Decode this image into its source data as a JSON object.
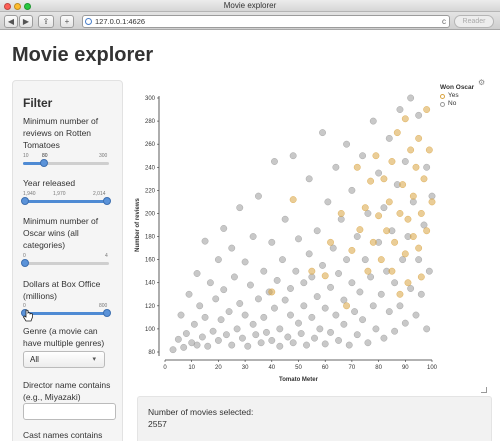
{
  "window": {
    "title": "Movie explorer",
    "url": "127.0.0.1:4626",
    "reader_label": "Reader"
  },
  "app": {
    "title": "Movie explorer"
  },
  "sidebar": {
    "heading": "Filter",
    "reviews": {
      "label": "Minimum number of reviews on Rotten Tomatoes",
      "min_tick": "10",
      "value_tick": "80",
      "max_tick": "300",
      "value": 80,
      "min": 10,
      "max": 300
    },
    "year": {
      "label": "Year released",
      "lo_tick": "1,940",
      "mid_tick": "1,970",
      "hi_tick": "2,014",
      "lo": 1940,
      "hi": 2014,
      "min": 1940,
      "max": 2014
    },
    "oscar": {
      "label": "Minimum number of Oscar wins (all categories)",
      "min_tick": "0",
      "max_tick": "4",
      "value": 0
    },
    "boxoffice": {
      "label": "Dollars at Box Office (millions)",
      "min_tick": "0",
      "max_tick": "800",
      "lo": 0,
      "hi": 800
    },
    "genre": {
      "label": "Genre (a movie can have multiple genres)",
      "selected": "All"
    },
    "director": {
      "label": "Director name contains (e.g., Miyazaki)",
      "value": ""
    },
    "cast": {
      "label": "Cast names contains"
    }
  },
  "selection": {
    "label": "Number of movies selected:",
    "count": "2557"
  },
  "chart_data": {
    "type": "scatter",
    "xlabel": "Tomato Meter",
    "ylabel": "Number of reviews",
    "xlim": [
      0,
      100
    ],
    "ylim": [
      80,
      300
    ],
    "x_ticks": [
      "0",
      "10",
      "20",
      "30",
      "40",
      "50",
      "60",
      "70",
      "80",
      "90",
      "100"
    ],
    "y_ticks": [
      "80",
      "100",
      "120",
      "140",
      "160",
      "180",
      "200",
      "220",
      "240",
      "260",
      "280",
      "300"
    ],
    "legend": {
      "title": "Won Oscar",
      "entries": [
        "Yes",
        "No"
      ],
      "placement": "top-right"
    },
    "colors": {
      "Yes": "#d9a441",
      "No": "#9a9a9a"
    },
    "series": [
      {
        "name": "No",
        "points": [
          [
            3,
            82
          ],
          [
            5,
            91
          ],
          [
            6,
            112
          ],
          [
            7,
            84
          ],
          [
            8,
            96
          ],
          [
            9,
            130
          ],
          [
            10,
            88
          ],
          [
            11,
            104
          ],
          [
            12,
            148
          ],
          [
            12,
            86
          ],
          [
            13,
            120
          ],
          [
            14,
            93
          ],
          [
            15,
            176
          ],
          [
            15,
            110
          ],
          [
            16,
            85
          ],
          [
            17,
            140
          ],
          [
            18,
            98
          ],
          [
            19,
            126
          ],
          [
            20,
            160
          ],
          [
            20,
            90
          ],
          [
            21,
            108
          ],
          [
            22,
            187
          ],
          [
            22,
            134
          ],
          [
            23,
            95
          ],
          [
            24,
            115
          ],
          [
            25,
            170
          ],
          [
            25,
            86
          ],
          [
            26,
            145
          ],
          [
            27,
            100
          ],
          [
            28,
            122
          ],
          [
            28,
            205
          ],
          [
            29,
            92
          ],
          [
            30,
            158
          ],
          [
            30,
            112
          ],
          [
            31,
            85
          ],
          [
            32,
            138
          ],
          [
            33,
            104
          ],
          [
            33,
            180
          ],
          [
            34,
            95
          ],
          [
            35,
            126
          ],
          [
            35,
            215
          ],
          [
            36,
            88
          ],
          [
            37,
            150
          ],
          [
            37,
            110
          ],
          [
            38,
            97
          ],
          [
            39,
            132
          ],
          [
            40,
            175
          ],
          [
            40,
            90
          ],
          [
            41,
            118
          ],
          [
            41,
            245
          ],
          [
            42,
            142
          ],
          [
            43,
            100
          ],
          [
            43,
            85
          ],
          [
            44,
            160
          ],
          [
            45,
            125
          ],
          [
            45,
            195
          ],
          [
            46,
            93
          ],
          [
            47,
            135
          ],
          [
            47,
            112
          ],
          [
            48,
            250
          ],
          [
            48,
            88
          ],
          [
            49,
            150
          ],
          [
            50,
            105
          ],
          [
            50,
            178
          ],
          [
            51,
            96
          ],
          [
            52,
            140
          ],
          [
            52,
            120
          ],
          [
            53,
            86
          ],
          [
            54,
            165
          ],
          [
            54,
            230
          ],
          [
            55,
            110
          ],
          [
            55,
            145
          ],
          [
            56,
            92
          ],
          [
            57,
            185
          ],
          [
            57,
            128
          ],
          [
            58,
            100
          ],
          [
            59,
            155
          ],
          [
            59,
            270
          ],
          [
            60,
            118
          ],
          [
            60,
            87
          ],
          [
            61,
            210
          ],
          [
            62,
            136
          ],
          [
            62,
            97
          ],
          [
            63,
            170
          ],
          [
            64,
            112
          ],
          [
            64,
            240
          ],
          [
            65,
            148
          ],
          [
            65,
            90
          ],
          [
            66,
            195
          ],
          [
            67,
            125
          ],
          [
            67,
            104
          ],
          [
            68,
            160
          ],
          [
            68,
            260
          ],
          [
            69,
            86
          ],
          [
            70,
            140
          ],
          [
            70,
            220
          ],
          [
            71,
            115
          ],
          [
            72,
            180
          ],
          [
            72,
            95
          ],
          [
            73,
            132
          ],
          [
            74,
            250
          ],
          [
            74,
            108
          ],
          [
            75,
            160
          ],
          [
            76,
            88
          ],
          [
            76,
            200
          ],
          [
            77,
            145
          ],
          [
            78,
            120
          ],
          [
            78,
            280
          ],
          [
            79,
            100
          ],
          [
            80,
            175
          ],
          [
            80,
            235
          ],
          [
            81,
            130
          ],
          [
            82,
            92
          ],
          [
            82,
            205
          ],
          [
            83,
            150
          ],
          [
            84,
            115
          ],
          [
            84,
            265
          ],
          [
            85,
            185
          ],
          [
            86,
            98
          ],
          [
            86,
            140
          ],
          [
            87,
            225
          ],
          [
            88,
            120
          ],
          [
            88,
            290
          ],
          [
            89,
            160
          ],
          [
            90,
            105
          ],
          [
            90,
            245
          ],
          [
            91,
            180
          ],
          [
            92,
            135
          ],
          [
            92,
            300
          ],
          [
            93,
            210
          ],
          [
            94,
            112
          ],
          [
            95,
            160
          ],
          [
            95,
            285
          ],
          [
            96,
            130
          ],
          [
            97,
            190
          ],
          [
            98,
            240
          ],
          [
            98,
            100
          ],
          [
            99,
            150
          ],
          [
            100,
            215
          ]
        ]
      },
      {
        "name": "Yes",
        "points": [
          [
            40,
            132
          ],
          [
            48,
            212
          ],
          [
            55,
            150
          ],
          [
            60,
            146
          ],
          [
            62,
            175
          ],
          [
            66,
            200
          ],
          [
            68,
            120
          ],
          [
            70,
            168
          ],
          [
            72,
            240
          ],
          [
            73,
            186
          ],
          [
            75,
            205
          ],
          [
            76,
            150
          ],
          [
            77,
            228
          ],
          [
            78,
            175
          ],
          [
            79,
            250
          ],
          [
            80,
            198
          ],
          [
            81,
            160
          ],
          [
            82,
            230
          ],
          [
            83,
            185
          ],
          [
            84,
            210
          ],
          [
            85,
            150
          ],
          [
            85,
            245
          ],
          [
            86,
            175
          ],
          [
            87,
            270
          ],
          [
            88,
            200
          ],
          [
            88,
            130
          ],
          [
            89,
            225
          ],
          [
            90,
            165
          ],
          [
            90,
            282
          ],
          [
            91,
            195
          ],
          [
            91,
            140
          ],
          [
            92,
            255
          ],
          [
            93,
            180
          ],
          [
            93,
            215
          ],
          [
            94,
            240
          ],
          [
            95,
            170
          ],
          [
            95,
            265
          ],
          [
            96,
            200
          ],
          [
            96,
            145
          ],
          [
            97,
            230
          ],
          [
            98,
            185
          ],
          [
            98,
            290
          ],
          [
            99,
            255
          ],
          [
            100,
            210
          ]
        ]
      }
    ]
  }
}
